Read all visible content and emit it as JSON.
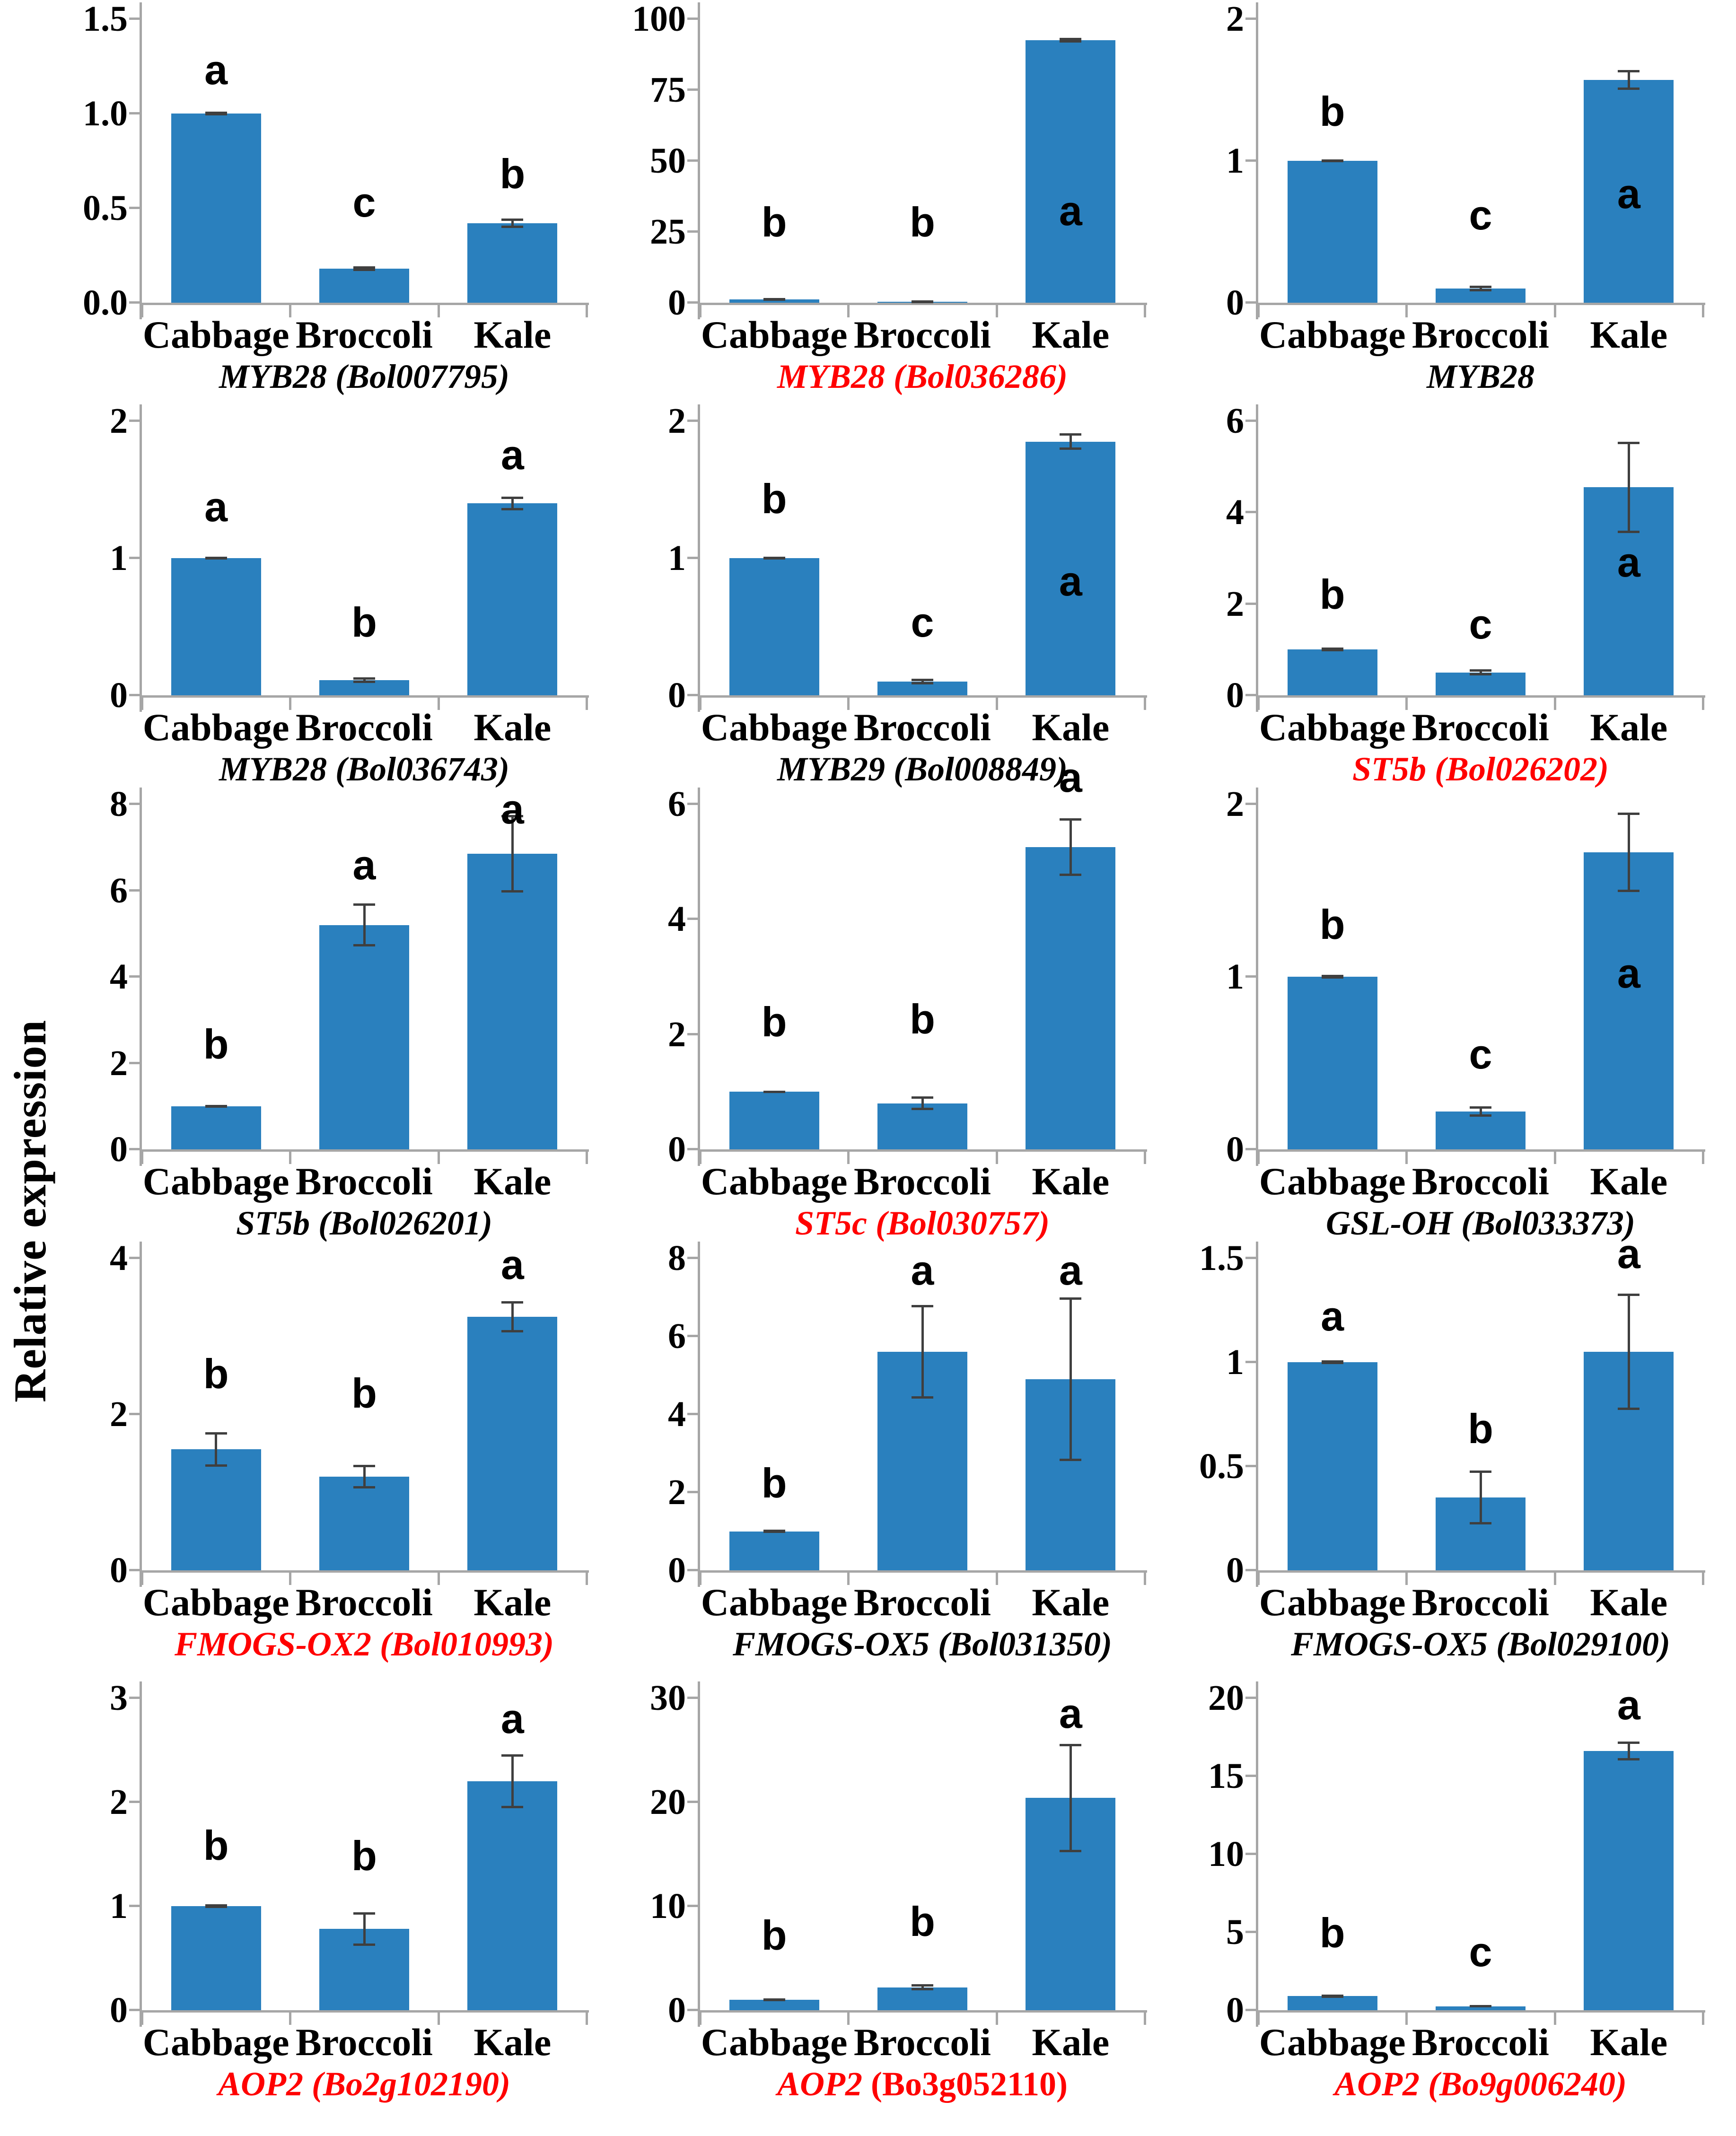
{
  "figure": {
    "ylabel": "Relative expression",
    "categories": [
      "Cabbage",
      "Broccoli",
      "Kale"
    ],
    "bar_color": "#2A80BE",
    "axis_color": "#a6a6a6",
    "error_color": "#3f3f3f",
    "red_title_color": "#FF0000",
    "black_title_color": "#000000"
  },
  "chart_data": [
    {
      "type": "bar",
      "gene": "MYB28",
      "gene_id": "(Bol007795)",
      "title_color": "#000000",
      "id_italic": true,
      "ymax": 1.5,
      "yticks": [
        "0.0",
        "0.5",
        "1.0",
        "1.5"
      ],
      "ylabel": "Relative expression",
      "grid": false,
      "categories": [
        "Cabbage",
        "Broccoli",
        "Kale"
      ],
      "values": [
        1.0,
        0.18,
        0.42
      ],
      "errors": [
        0.01,
        0.012,
        0.025
      ],
      "letters": [
        "a",
        "c",
        "b"
      ],
      "letter_y": [
        1.12,
        0.42,
        0.57
      ]
    },
    {
      "type": "bar",
      "gene": "MYB28",
      "gene_id": "(Bol036286)",
      "title_color": "#FF0000",
      "id_italic": true,
      "ymax": 100,
      "yticks": [
        "0",
        "25",
        "50",
        "75",
        "100"
      ],
      "ylabel": "Relative expression",
      "grid": false,
      "categories": [
        "Cabbage",
        "Broccoli",
        "Kale"
      ],
      "values": [
        1.2,
        0.3,
        92.5
      ],
      "errors": [
        0.5,
        0.4,
        0.8
      ],
      "letters": [
        "b",
        "b",
        "a"
      ],
      "letter_y": [
        21,
        21,
        25
      ]
    },
    {
      "type": "bar",
      "gene": "MYB28",
      "gene_id": "",
      "title_color": "#000000",
      "id_italic": true,
      "ymax": 2,
      "yticks": [
        "0",
        "1",
        "2"
      ],
      "ylabel": "Relative expression",
      "grid": false,
      "categories": [
        "Cabbage",
        "Broccoli",
        "Kale"
      ],
      "values": [
        1.0,
        0.1,
        1.57
      ],
      "errors": [
        0.01,
        0.02,
        0.07
      ],
      "letters": [
        "b",
        "c",
        "a"
      ],
      "letter_y": [
        1.2,
        0.47,
        0.62
      ]
    },
    {
      "type": "bar",
      "gene": "MYB28",
      "gene_id": "(Bol036743)",
      "title_color": "#000000",
      "id_italic": true,
      "ymax": 2,
      "yticks": [
        "0",
        "1",
        "2"
      ],
      "ylabel": "Relative expression",
      "grid": false,
      "categories": [
        "Cabbage",
        "Broccoli",
        "Kale"
      ],
      "values": [
        1.0,
        0.11,
        1.4
      ],
      "errors": [
        0.01,
        0.02,
        0.05
      ],
      "letters": [
        "a",
        "b",
        "a"
      ],
      "letter_y": [
        1.22,
        0.38,
        1.6
      ]
    },
    {
      "type": "bar",
      "gene": "MYB29",
      "gene_id": "(Bol008849)",
      "title_color": "#000000",
      "id_italic": true,
      "ymax": 2,
      "yticks": [
        "0",
        "1",
        "2"
      ],
      "ylabel": "Relative expression",
      "grid": false,
      "categories": [
        "Cabbage",
        "Broccoli",
        "Kale"
      ],
      "values": [
        1.0,
        0.1,
        1.85
      ],
      "errors": [
        0.01,
        0.02,
        0.06
      ],
      "letters": [
        "b",
        "c",
        "a"
      ],
      "letter_y": [
        1.28,
        0.38,
        0.68
      ]
    },
    {
      "type": "bar",
      "gene": "ST5b",
      "gene_id": "(Bol026202)",
      "title_color": "#FF0000",
      "id_italic": true,
      "ymax": 6,
      "yticks": [
        "0",
        "2",
        "4",
        "6"
      ],
      "ylabel": "Relative expression",
      "grid": false,
      "categories": [
        "Cabbage",
        "Broccoli",
        "Kale"
      ],
      "values": [
        1.0,
        0.5,
        4.55
      ],
      "errors": [
        0.04,
        0.07,
        1.0
      ],
      "letters": [
        "b",
        "c",
        "a"
      ],
      "letter_y": [
        1.75,
        1.1,
        2.45
      ]
    },
    {
      "type": "bar",
      "gene": "ST5b",
      "gene_id": "(Bol026201)",
      "title_color": "#000000",
      "id_italic": true,
      "ymax": 8,
      "yticks": [
        "0",
        "2",
        "4",
        "6",
        "8"
      ],
      "ylabel": "Relative expression",
      "grid": false,
      "categories": [
        "Cabbage",
        "Broccoli",
        "Kale"
      ],
      "values": [
        1.0,
        5.2,
        6.85
      ],
      "errors": [
        0.03,
        0.5,
        0.9
      ],
      "letters": [
        "b",
        "a",
        "a"
      ],
      "letter_y": [
        1.95,
        6.1,
        7.4
      ]
    },
    {
      "type": "bar",
      "gene": "ST5c",
      "gene_id": "(Bol030757)",
      "title_color": "#FF0000",
      "id_italic": true,
      "ymax": 6,
      "yticks": [
        "0",
        "2",
        "4",
        "6"
      ],
      "ylabel": "Relative expression",
      "grid": false,
      "categories": [
        "Cabbage",
        "Broccoli",
        "Kale"
      ],
      "values": [
        1.0,
        0.8,
        5.25
      ],
      "errors": [
        0.02,
        0.12,
        0.5
      ],
      "letters": [
        "b",
        "b",
        "a"
      ],
      "letter_y": [
        1.85,
        1.9,
        6.1
      ]
    },
    {
      "type": "bar",
      "gene": "GSL-OH",
      "gene_id": "(Bol033373)",
      "title_color": "#000000",
      "id_italic": true,
      "ymax": 2,
      "yticks": [
        "0",
        "1",
        "2"
      ],
      "ylabel": "Relative expression",
      "grid": false,
      "categories": [
        "Cabbage",
        "Broccoli",
        "Kale"
      ],
      "values": [
        1.0,
        0.22,
        1.72
      ],
      "errors": [
        0.01,
        0.03,
        0.23
      ],
      "letters": [
        "b",
        "c",
        "a"
      ],
      "letter_y": [
        1.18,
        0.43,
        0.9
      ]
    },
    {
      "type": "bar",
      "gene": "FMOGS-OX2",
      "gene_id": "(Bol010993)",
      "title_color": "#FF0000",
      "id_italic": true,
      "ymax": 4,
      "yticks": [
        "0",
        "2",
        "4"
      ],
      "ylabel": "Relative expression",
      "grid": false,
      "categories": [
        "Cabbage",
        "Broccoli",
        "Kale"
      ],
      "values": [
        1.55,
        1.2,
        3.25
      ],
      "errors": [
        0.22,
        0.15,
        0.2
      ],
      "letters": [
        "b",
        "b",
        "a"
      ],
      "letter_y": [
        2.25,
        2.0,
        3.65
      ]
    },
    {
      "type": "bar",
      "gene": "FMOGS-OX5",
      "gene_id": "(Bol031350)",
      "title_color": "#000000",
      "id_italic": true,
      "ymax": 8,
      "yticks": [
        "0",
        "2",
        "4",
        "6",
        "8"
      ],
      "ylabel": "Relative expression",
      "grid": false,
      "categories": [
        "Cabbage",
        "Broccoli",
        "Kale"
      ],
      "values": [
        1.0,
        5.6,
        4.9
      ],
      "errors": [
        0.04,
        1.2,
        2.1
      ],
      "letters": [
        "b",
        "a",
        "a"
      ],
      "letter_y": [
        1.7,
        7.15,
        7.15
      ]
    },
    {
      "type": "bar",
      "gene": "FMOGS-OX5",
      "gene_id": "(Bol029100)",
      "title_color": "#000000",
      "id_italic": true,
      "ymax": 1.5,
      "yticks": [
        "0",
        "0.5",
        "1",
        "1.5"
      ],
      "ylabel": "Relative expression",
      "grid": false,
      "categories": [
        "Cabbage",
        "Broccoli",
        "Kale"
      ],
      "values": [
        1.0,
        0.35,
        1.05
      ],
      "errors": [
        0.01,
        0.13,
        0.28
      ],
      "letters": [
        "a",
        "b",
        "a"
      ],
      "letter_y": [
        1.12,
        0.58,
        1.42
      ]
    },
    {
      "type": "bar",
      "gene": "AOP2",
      "gene_id": "(Bo2g102190)",
      "title_color": "#FF0000",
      "id_italic": true,
      "ymax": 3,
      "yticks": [
        "0",
        "1",
        "2",
        "3"
      ],
      "ylabel": "Relative expression",
      "grid": false,
      "categories": [
        "Cabbage",
        "Broccoli",
        "Kale"
      ],
      "values": [
        1.0,
        0.78,
        2.2
      ],
      "errors": [
        0.02,
        0.16,
        0.26
      ],
      "letters": [
        "b",
        "b",
        "a"
      ],
      "letter_y": [
        1.38,
        1.28,
        2.6
      ]
    },
    {
      "type": "bar",
      "gene": "AOP2",
      "gene_id": "(Bo3g052110)",
      "title_color": "#FF0000",
      "id_italic": false,
      "ymax": 30,
      "yticks": [
        "0",
        "10",
        "20",
        "30"
      ],
      "ylabel": "Relative expression",
      "grid": false,
      "categories": [
        "Cabbage",
        "Broccoli",
        "Kale"
      ],
      "values": [
        1.0,
        2.2,
        20.4
      ],
      "errors": [
        0.15,
        0.3,
        5.2
      ],
      "letters": [
        "b",
        "b",
        "a"
      ],
      "letter_y": [
        5.2,
        6.5,
        26.5
      ]
    },
    {
      "type": "bar",
      "gene": "AOP2",
      "gene_id": "(Bo9g006240)",
      "title_color": "#FF0000",
      "id_italic": true,
      "ymax": 20,
      "yticks": [
        "0",
        "5",
        "10",
        "15",
        "20"
      ],
      "ylabel": "Relative expression",
      "grid": false,
      "categories": [
        "Cabbage",
        "Broccoli",
        "Kale"
      ],
      "values": [
        0.9,
        0.25,
        16.6
      ],
      "errors": [
        0.1,
        0.08,
        0.6
      ],
      "letters": [
        "b",
        "c",
        "a"
      ],
      "letter_y": [
        3.6,
        2.4,
        18.2
      ]
    }
  ]
}
